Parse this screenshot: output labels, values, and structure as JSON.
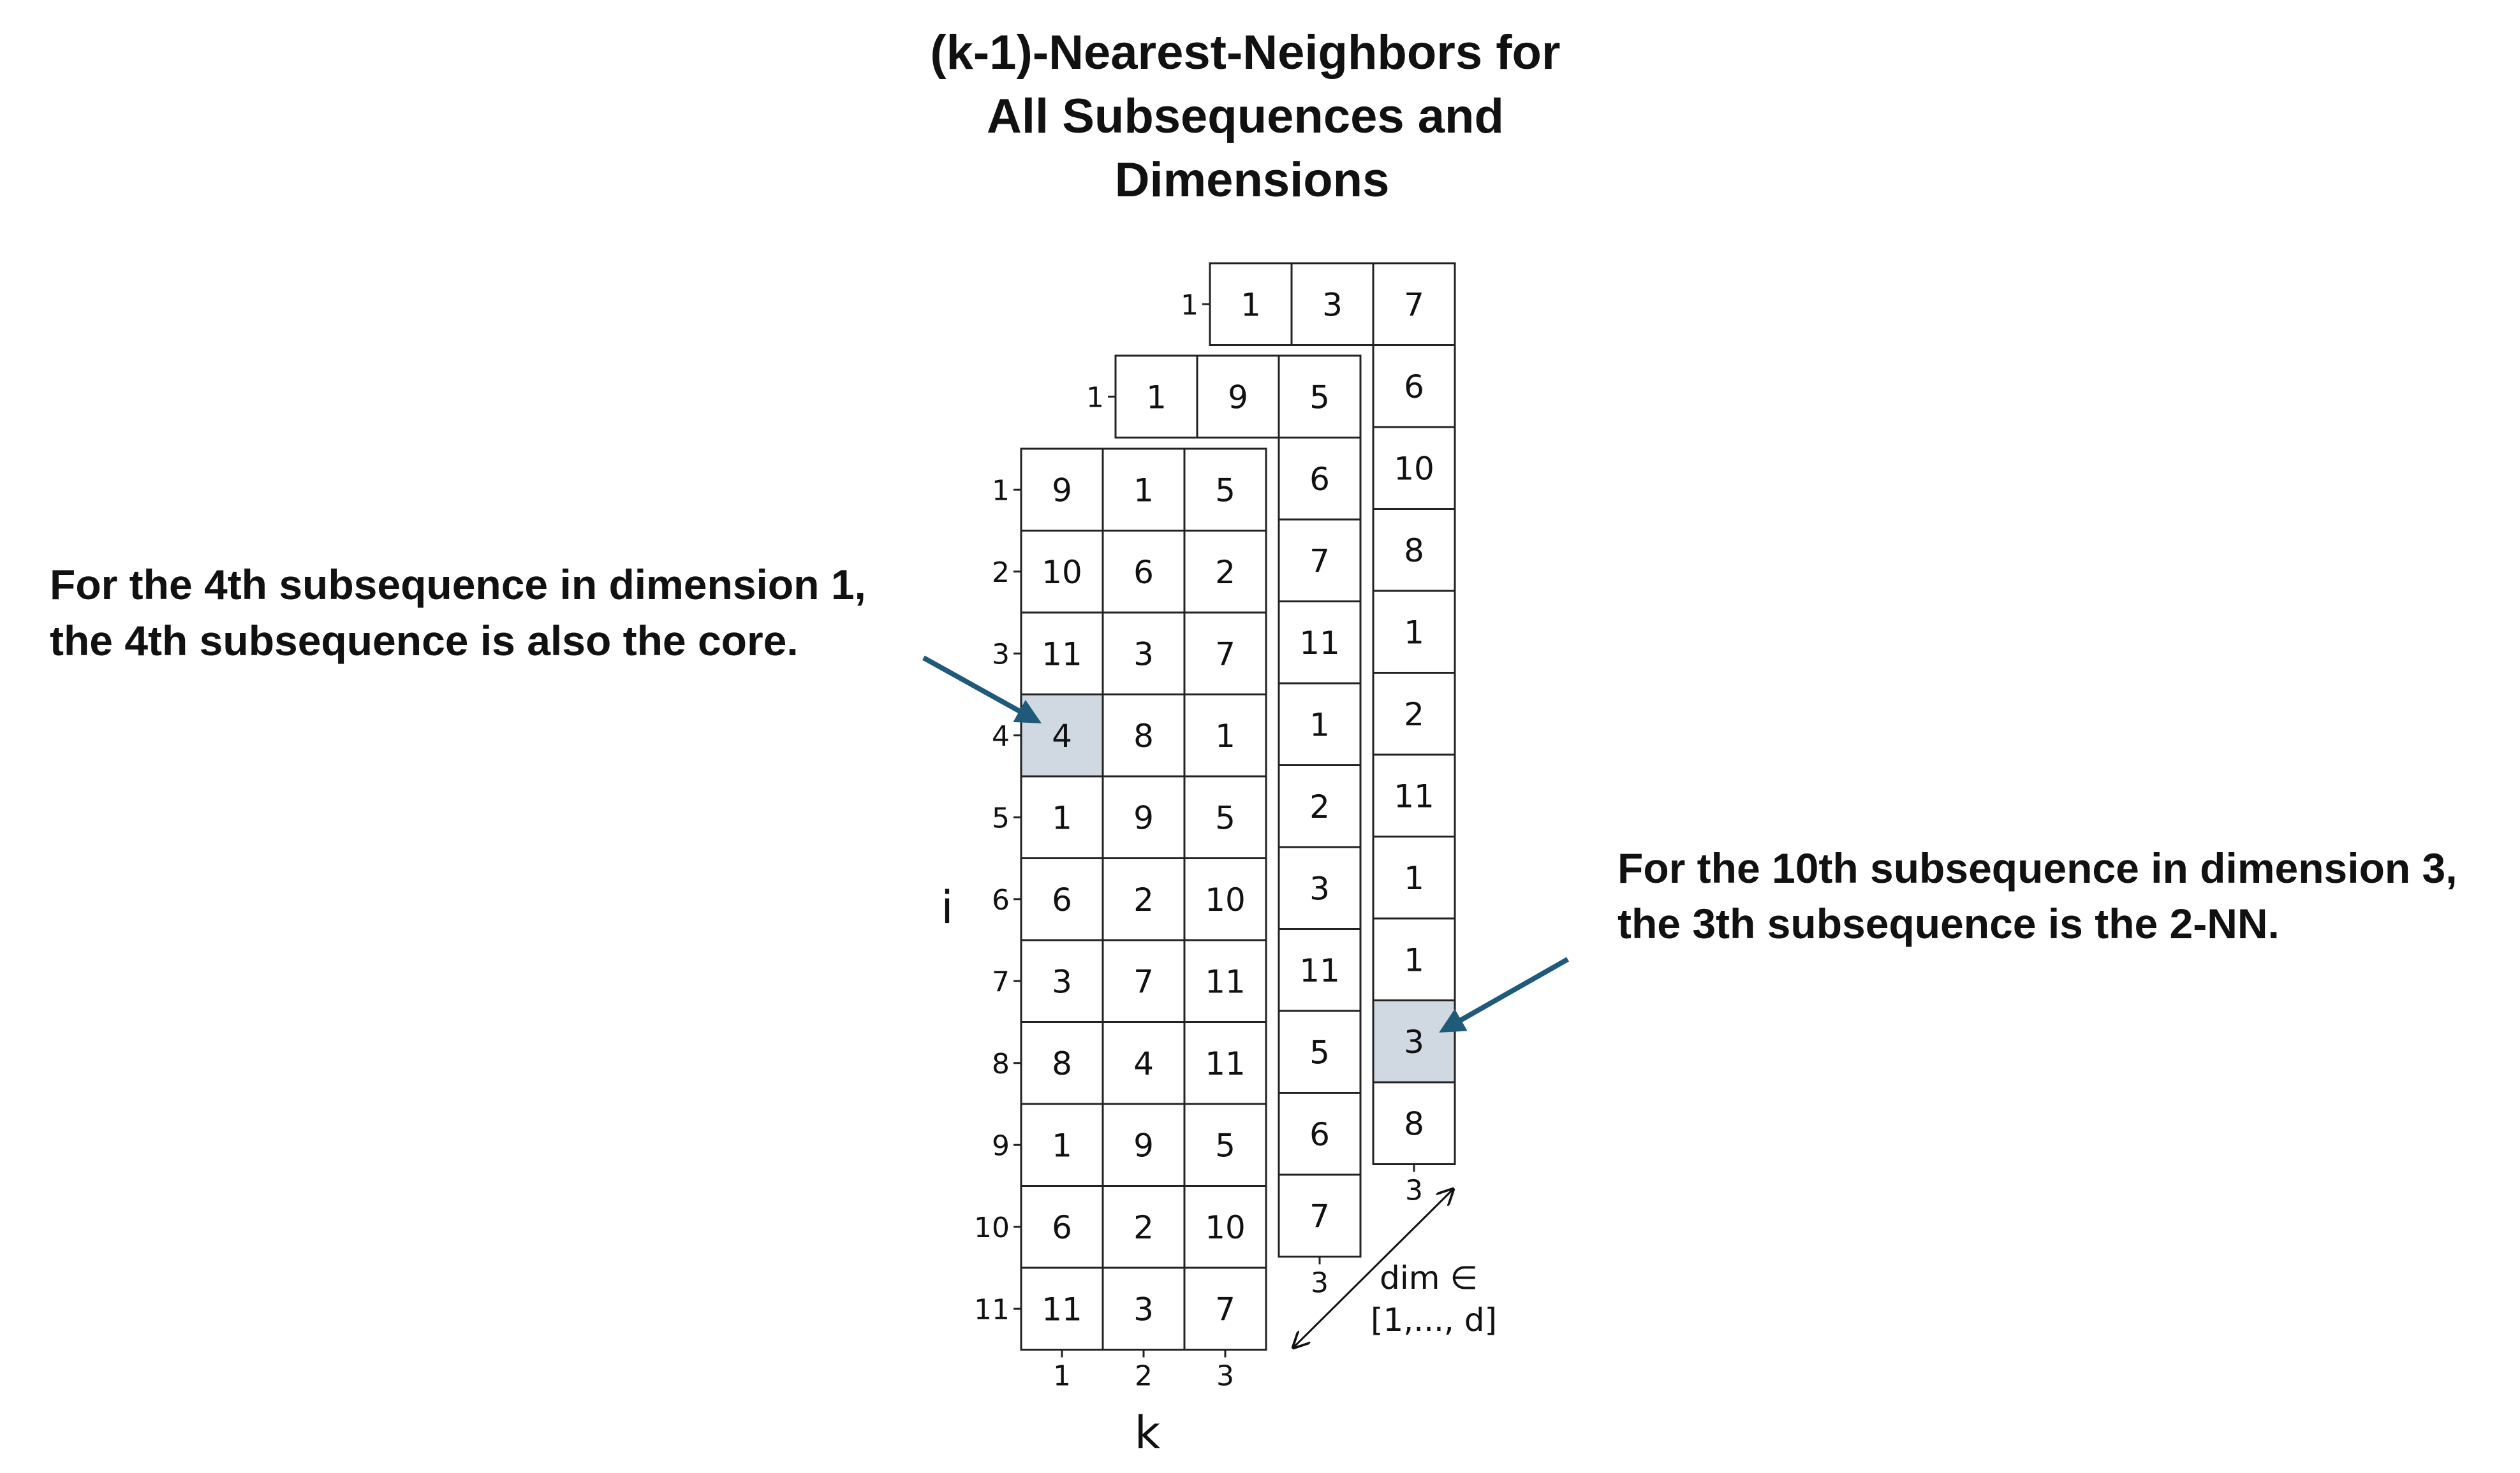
{
  "title_lines": [
    "(k-1)-Nearest-Neighbors for",
    "All Subsequences and",
    "Dimensions"
  ],
  "annotation_left": [
    "For the 4th subsequence in dimension 1,",
    "the 4th subsequence is also the core."
  ],
  "annotation_right": [
    "For the 10th subsequence in dimension 3,",
    "the 3th subsequence is the 2-NN."
  ],
  "axis_i_label": "i",
  "axis_k_label": "k",
  "dim_label": [
    "dim ∈",
    "[1,..., d]"
  ],
  "colors": {
    "highlight": "#d0d8e2",
    "arrow": "#1f5a7a",
    "grid": "#222222"
  },
  "front_layer": {
    "row_ticks": [
      "1",
      "2",
      "3",
      "4",
      "5",
      "6",
      "7",
      "8",
      "9",
      "10",
      "11"
    ],
    "col_ticks": [
      "1",
      "2",
      "3"
    ],
    "rows": [
      [
        "9",
        "1",
        "5"
      ],
      [
        "10",
        "6",
        "2"
      ],
      [
        "11",
        "3",
        "7"
      ],
      [
        "4",
        "8",
        "1"
      ],
      [
        "1",
        "9",
        "5"
      ],
      [
        "6",
        "2",
        "10"
      ],
      [
        "3",
        "7",
        "11"
      ],
      [
        "8",
        "4",
        "11"
      ],
      [
        "1",
        "9",
        "5"
      ],
      [
        "6",
        "2",
        "10"
      ],
      [
        "11",
        "3",
        "7"
      ]
    ],
    "highlight": [
      3,
      0
    ]
  },
  "middle_layer": {
    "row_tick": "1",
    "top_row": [
      "1",
      "9",
      "5"
    ],
    "col3_values": [
      "5",
      "6",
      "7",
      "11",
      "1",
      "2",
      "3",
      "11",
      "5",
      "6",
      "7"
    ],
    "col_tick": "3"
  },
  "back_layer": {
    "row_tick": "1",
    "top_row": [
      "1",
      "3",
      "7"
    ],
    "col3_values": [
      "7",
      "6",
      "10",
      "8",
      "1",
      "2",
      "11",
      "1",
      "1",
      "3",
      "8"
    ],
    "col_tick": "3",
    "highlight_index": 9
  }
}
